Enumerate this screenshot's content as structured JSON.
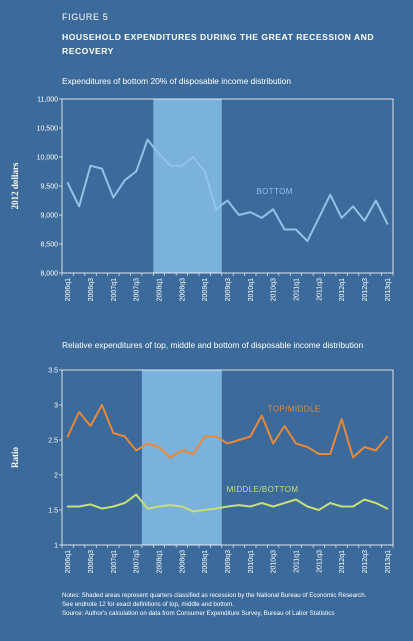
{
  "figure_label": "FIGURE 5",
  "figure_title": "HOUSEHOLD EXPENDITURES DURING THE GREAT RECESSION AND RECOVERY",
  "colors": {
    "background": "#3b6a9b",
    "recession": "#7bb2db",
    "bottom_line": "#8fc3e8",
    "top_middle_line": "#e8893a",
    "middle_bottom_line": "#c6df7a",
    "frame": "#ffffff"
  },
  "chart_data": [
    {
      "type": "line",
      "title": "Expenditures of bottom 20% of disposable income distribution",
      "ylabel": "2012 dollars",
      "ylim": [
        8000,
        11000
      ],
      "yticks": [
        "8,000",
        "8,500",
        "9,000",
        "9,500",
        "10,000",
        "10,500",
        "11,000"
      ],
      "ytick_values": [
        8000,
        8500,
        9000,
        9500,
        10000,
        10500,
        11000
      ],
      "x": [
        "2006q1",
        "2006q2",
        "2006q3",
        "2006q4",
        "2007q1",
        "2007q2",
        "2007q3",
        "2007q4",
        "2008q1",
        "2008q2",
        "2008q3",
        "2008q4",
        "2009q1",
        "2009q2",
        "2009q3",
        "2009q4",
        "2010q1",
        "2010q2",
        "2010q3",
        "2010q4",
        "2011q1",
        "2011q2",
        "2011q3",
        "2011q4",
        "2012q1",
        "2012q2",
        "2012q3",
        "2012q4",
        "2013q1"
      ],
      "xtick_labels": [
        "2006q1",
        "2006q3",
        "2007q1",
        "2007q3",
        "2008q1",
        "2008q3",
        "2009q1",
        "2009q3",
        "2010q1",
        "2010q3",
        "2011q1",
        "2011q3",
        "2012q1",
        "2012q3",
        "2013q1"
      ],
      "recession": [
        "2008q1",
        "2009q2"
      ],
      "series": [
        {
          "name": "BOTTOM",
          "values": [
            9550,
            9150,
            9850,
            9800,
            9300,
            9600,
            9750,
            10300,
            10050,
            9850,
            9850,
            10000,
            9750,
            9100,
            9250,
            9000,
            9050,
            8950,
            9100,
            8750,
            8750,
            8550,
            8950,
            9350,
            8950,
            9150,
            8900,
            9250,
            8850
          ]
        }
      ]
    },
    {
      "type": "line",
      "title": "Relative expenditures of top, middle and bottom of disposable income distribution",
      "ylabel": "Ratio",
      "ylim": [
        1,
        3.5
      ],
      "yticks": [
        "1",
        "1.5",
        "2",
        "2.5",
        "3",
        "3.5"
      ],
      "ytick_values": [
        1,
        1.5,
        2,
        2.5,
        3,
        3.5
      ],
      "x": [
        "2006q1",
        "2006q2",
        "2006q3",
        "2006q4",
        "2007q1",
        "2007q2",
        "2007q3",
        "2007q4",
        "2008q1",
        "2008q2",
        "2008q3",
        "2008q4",
        "2009q1",
        "2009q2",
        "2009q3",
        "2009q4",
        "2010q1",
        "2010q2",
        "2010q3",
        "2010q4",
        "2011q1",
        "2011q2",
        "2011q3",
        "2011q4",
        "2012q1",
        "2012q2",
        "2012q3",
        "2012q4",
        "2013q1"
      ],
      "xtick_labels": [
        "2006q1",
        "2006q3",
        "2007q1",
        "2007q3",
        "2008q1",
        "2008q3",
        "2009q1",
        "2009q3",
        "2010q1",
        "2010q3",
        "2011q1",
        "2011q3",
        "2012q1",
        "2012q3",
        "2013q1"
      ],
      "recession": [
        "2007q4",
        "2009q2"
      ],
      "series": [
        {
          "name": "TOP/MIDDLE",
          "values": [
            2.55,
            2.9,
            2.7,
            3.0,
            2.6,
            2.55,
            2.35,
            2.45,
            2.4,
            2.25,
            2.35,
            2.3,
            2.55,
            2.55,
            2.45,
            2.5,
            2.55,
            2.85,
            2.45,
            2.7,
            2.45,
            2.4,
            2.3,
            2.3,
            2.8,
            2.25,
            2.4,
            2.35,
            2.55
          ]
        },
        {
          "name": "MIDDLE/BOTTOM",
          "values": [
            1.55,
            1.55,
            1.58,
            1.52,
            1.55,
            1.6,
            1.72,
            1.52,
            1.55,
            1.57,
            1.55,
            1.48,
            1.5,
            1.52,
            1.55,
            1.57,
            1.55,
            1.6,
            1.55,
            1.6,
            1.65,
            1.55,
            1.5,
            1.6,
            1.55,
            1.55,
            1.65,
            1.6,
            1.52
          ]
        }
      ]
    }
  ],
  "notes": [
    "Notes: Shaded areas represent quarters classified as recession by the National Bureau of Economic Research.",
    "See endnote 12 for exact definitions of top, middle and bottom.",
    "Source: Author's calculation on data from Consumer Expenditure Survey, Bureau of Labor Statistics"
  ]
}
